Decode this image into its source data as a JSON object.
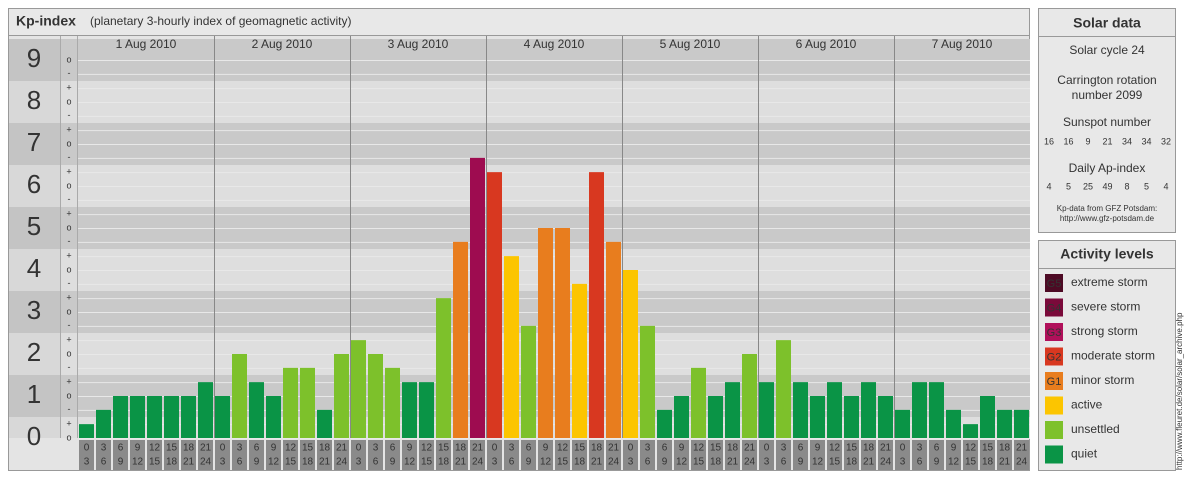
{
  "chart_data": {
    "type": "bar",
    "title": "Kp-index",
    "subtitle": "(planetary 3-hourly index of geomagnetic activity)",
    "days": [
      "1 Aug 2010",
      "2 Aug 2010",
      "3 Aug 2010",
      "4 Aug 2010",
      "5 Aug 2010",
      "6 Aug 2010",
      "7 Aug 2010"
    ],
    "hour_starts": [
      "0",
      "3",
      "6",
      "9",
      "12",
      "15",
      "18",
      "21"
    ],
    "hour_ends": [
      "3",
      "6",
      "9",
      "12",
      "15",
      "18",
      "21",
      "24"
    ],
    "values": [
      0.33,
      0.67,
      1,
      1,
      1,
      1,
      1,
      1.33,
      1,
      2,
      1.33,
      1,
      1.67,
      1.67,
      0.67,
      2,
      2.33,
      2,
      1.67,
      1.33,
      1.33,
      3.33,
      4.67,
      6.67,
      6.33,
      4.33,
      2.67,
      5,
      5,
      3.67,
      6.33,
      4.67,
      4,
      2.67,
      0.67,
      1,
      1.67,
      1,
      1.33,
      2,
      1.33,
      2.33,
      1.33,
      1,
      1.33,
      1,
      1.33,
      1,
      0.67,
      1.33,
      1.33,
      0.67,
      0.33,
      1,
      0.67,
      0.67
    ],
    "colors": [
      "#0a9446",
      "#0a9446",
      "#0a9446",
      "#0a9446",
      "#0a9446",
      "#0a9446",
      "#0a9446",
      "#0a9446",
      "#0a9446",
      "#7dc12b",
      "#0a9446",
      "#0a9446",
      "#7dc12b",
      "#7dc12b",
      "#0a9446",
      "#7dc12b",
      "#7dc12b",
      "#7dc12b",
      "#7dc12b",
      "#0a9446",
      "#0a9446",
      "#7dc12b",
      "#e87d1e",
      "#9e0c50",
      "#d83820",
      "#fcc500",
      "#7dc12b",
      "#e87d1e",
      "#e87d1e",
      "#fcc500",
      "#d83820",
      "#e87d1e",
      "#fcc500",
      "#7dc12b",
      "#0a9446",
      "#0a9446",
      "#7dc12b",
      "#0a9446",
      "#0a9446",
      "#7dc12b",
      "#0a9446",
      "#7dc12b",
      "#0a9446",
      "#0a9446",
      "#0a9446",
      "#0a9446",
      "#0a9446",
      "#0a9446",
      "#0a9446",
      "#0a9446",
      "#0a9446",
      "#0a9446",
      "#0a9446",
      "#0a9446",
      "#0a9446",
      "#0a9446"
    ],
    "ylim": [
      0,
      9.5
    ],
    "yticks": [
      0,
      1,
      2,
      3,
      4,
      5,
      6,
      7,
      8,
      9
    ],
    "yminorticks": [
      {
        "value": 9,
        "label": "o"
      },
      {
        "value": 8.67,
        "label": "-"
      },
      {
        "value": 8.33,
        "label": "+"
      },
      {
        "value": 8,
        "label": "o"
      },
      {
        "value": 7.67,
        "label": "-"
      },
      {
        "value": 7.33,
        "label": "+"
      },
      {
        "value": 7,
        "label": "o"
      },
      {
        "value": 6.67,
        "label": "-"
      },
      {
        "value": 6.33,
        "label": "+"
      },
      {
        "value": 6,
        "label": "o"
      },
      {
        "value": 5.67,
        "label": "-"
      },
      {
        "value": 5.33,
        "label": "+"
      },
      {
        "value": 5,
        "label": "o"
      },
      {
        "value": 4.67,
        "label": "-"
      },
      {
        "value": 4.33,
        "label": "+"
      },
      {
        "value": 4,
        "label": "o"
      },
      {
        "value": 3.67,
        "label": "-"
      },
      {
        "value": 3.33,
        "label": "+"
      },
      {
        "value": 3,
        "label": "o"
      },
      {
        "value": 2.67,
        "label": "-"
      },
      {
        "value": 2.33,
        "label": "+"
      },
      {
        "value": 2,
        "label": "o"
      },
      {
        "value": 1.67,
        "label": "-"
      },
      {
        "value": 1.33,
        "label": "+"
      },
      {
        "value": 1,
        "label": "o"
      },
      {
        "value": 0.67,
        "label": "-"
      },
      {
        "value": 0.33,
        "label": "+"
      },
      {
        "value": 0,
        "label": "o"
      }
    ],
    "grid": true,
    "legend": {
      "title": "Activity levels",
      "items": [
        {
          "badge": "G5",
          "name": "extreme storm",
          "color": "#4d0a24"
        },
        {
          "badge": "G4",
          "name": "severe storm",
          "color": "#7a0a3a"
        },
        {
          "badge": "G3",
          "name": "strong storm",
          "color": "#b0105a"
        },
        {
          "badge": "G2",
          "name": "moderate storm",
          "color": "#d83820"
        },
        {
          "badge": "G1",
          "name": "minor storm",
          "color": "#e87d1e"
        },
        {
          "name": "active",
          "color": "#fcc500"
        },
        {
          "name": "unsettled",
          "color": "#7dc12b"
        },
        {
          "name": "quiet",
          "color": "#0a9446"
        }
      ]
    }
  },
  "solar": {
    "title": "Solar data",
    "cycle": "Solar cycle 24",
    "carrington": [
      "Carrington rotation",
      "number 2099"
    ],
    "sunspot_title": "Sunspot number",
    "sunspots": [
      "16",
      "16",
      "9",
      "21",
      "34",
      "34",
      "32"
    ],
    "ap_title": "Daily Ap-index",
    "ap": [
      "4",
      "5",
      "25",
      "49",
      "8",
      "5",
      "4"
    ],
    "source": [
      "Kp-data from GFZ Potsdam:",
      "http://www.gfz-potsdam.de"
    ]
  },
  "side_url": "http://www.fleuret.de/solar/solar_archive.php"
}
